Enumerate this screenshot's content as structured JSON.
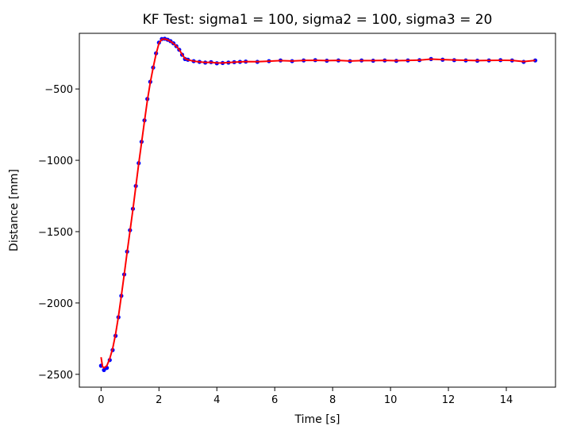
{
  "chart_data": {
    "type": "line",
    "title": "KF Test: sigma1 = 100, sigma2 = 100, sigma3 = 20",
    "xlabel": "Time [s]",
    "ylabel": "Distance [mm]",
    "xlim": [
      -0.75,
      15.7
    ],
    "ylim": [
      -2590,
      -110
    ],
    "xticks": [
      0,
      2,
      4,
      6,
      8,
      10,
      12,
      14
    ],
    "yticks": [
      -2500,
      -2000,
      -1500,
      -1000,
      -500
    ],
    "grid": false,
    "legend": "none",
    "colors": {
      "measurement": "#0000ff",
      "filter": "#ff0000"
    },
    "series": [
      {
        "style": "points",
        "color": "#0000ff",
        "x": [
          0,
          0.1,
          0.2,
          0.3,
          0.4,
          0.5,
          0.6,
          0.7,
          0.8,
          0.9,
          1.0,
          1.1,
          1.2,
          1.3,
          1.4,
          1.5,
          1.6,
          1.7,
          1.8,
          1.9,
          2.0,
          2.1,
          2.2,
          2.3,
          2.4,
          2.5,
          2.6,
          2.7,
          2.8,
          2.9,
          3.0,
          3.2,
          3.4,
          3.6,
          3.8,
          4.0,
          4.2,
          4.4,
          4.6,
          4.8,
          5.0,
          5.4,
          5.8,
          6.2,
          6.6,
          7.0,
          7.4,
          7.8,
          8.2,
          8.6,
          9.0,
          9.4,
          9.8,
          10.2,
          10.6,
          11.0,
          11.4,
          11.8,
          12.2,
          12.6,
          13.0,
          13.4,
          13.8,
          14.2,
          14.6,
          15.0
        ],
        "y": [
          -2440,
          -2470,
          -2455,
          -2400,
          -2330,
          -2230,
          -2100,
          -1950,
          -1800,
          -1640,
          -1490,
          -1340,
          -1180,
          -1020,
          -870,
          -720,
          -570,
          -450,
          -350,
          -250,
          -175,
          -150,
          -148,
          -155,
          -165,
          -180,
          -200,
          -225,
          -260,
          -290,
          -295,
          -305,
          -310,
          -315,
          -312,
          -320,
          -318,
          -315,
          -312,
          -310,
          -308,
          -310,
          -305,
          -300,
          -305,
          -300,
          -298,
          -302,
          -300,
          -305,
          -300,
          -302,
          -300,
          -303,
          -300,
          -298,
          -290,
          -295,
          -298,
          -300,
          -302,
          -300,
          -298,
          -300,
          -310,
          -300
        ]
      },
      {
        "style": "line",
        "color": "#ff0000",
        "x": [
          0,
          0.05,
          0.1,
          0.2,
          0.3,
          0.4,
          0.5,
          0.6,
          0.7,
          0.8,
          0.9,
          1.0,
          1.1,
          1.2,
          1.3,
          1.4,
          1.5,
          1.6,
          1.7,
          1.8,
          1.9,
          2.0,
          2.1,
          2.2,
          2.3,
          2.4,
          2.5,
          2.6,
          2.7,
          2.8,
          2.9,
          3.0,
          3.2,
          3.4,
          3.6,
          3.8,
          4.0,
          4.2,
          4.4,
          4.6,
          4.8,
          5.0,
          5.4,
          5.8,
          6.2,
          6.6,
          7.0,
          7.4,
          7.8,
          8.2,
          8.6,
          9.0,
          9.4,
          9.8,
          10.2,
          10.6,
          11.0,
          11.4,
          11.8,
          12.2,
          12.6,
          13.0,
          13.4,
          13.8,
          14.2,
          14.6,
          15.0
        ],
        "y": [
          -2380,
          -2445,
          -2455,
          -2440,
          -2390,
          -2320,
          -2220,
          -2095,
          -1950,
          -1800,
          -1645,
          -1495,
          -1345,
          -1185,
          -1025,
          -875,
          -725,
          -580,
          -455,
          -350,
          -255,
          -180,
          -152,
          -150,
          -156,
          -166,
          -181,
          -200,
          -224,
          -258,
          -287,
          -296,
          -305,
          -310,
          -314,
          -313,
          -318,
          -317,
          -315,
          -312,
          -310,
          -308,
          -309,
          -305,
          -301,
          -304,
          -300,
          -299,
          -301,
          -300,
          -304,
          -301,
          -301,
          -300,
          -302,
          -300,
          -298,
          -291,
          -294,
          -297,
          -299,
          -301,
          -300,
          -299,
          -300,
          -308,
          -300
        ]
      }
    ]
  }
}
